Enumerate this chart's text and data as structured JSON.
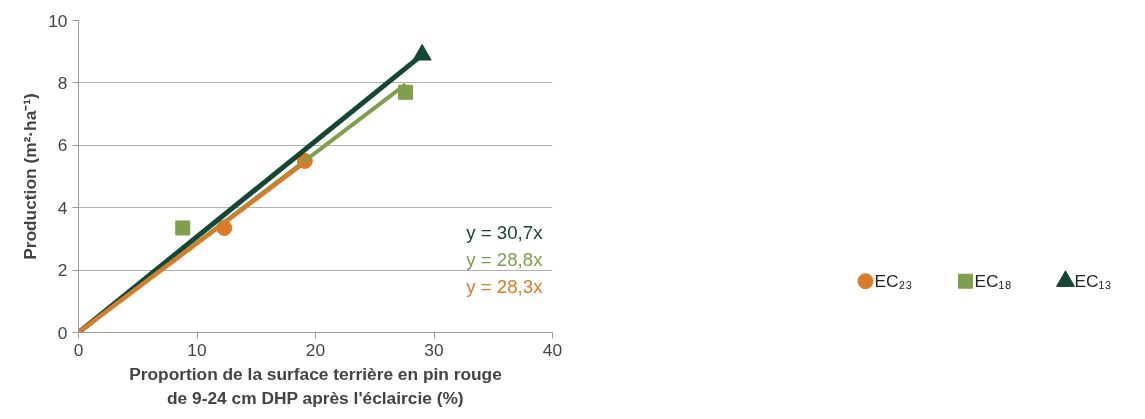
{
  "chart_data": {
    "type": "scatter",
    "xlabel": "Proportion de la surface terrière en pin rouge\nde 9-24 cm DHP après l'éclaircie (%)",
    "ylabel": "Production (m²·ha⁻¹)",
    "xlim": [
      0,
      40
    ],
    "xticks": [
      0,
      10,
      20,
      30,
      40
    ],
    "ylim": [
      0,
      10
    ],
    "yticks": [
      0,
      2,
      4,
      6,
      8,
      10
    ],
    "grid": "y",
    "legend": "bottom right",
    "series": [
      {
        "name": "EC₂₃",
        "type": "scatter",
        "marker": "circle",
        "color": "#d97b29",
        "x": [
          12.3,
          19.1
        ],
        "values": [
          3.35,
          5.5
        ]
      },
      {
        "name": "EC₁₈",
        "type": "scatter",
        "marker": "square",
        "color": "#7f9f4d",
        "x": [
          8.8,
          27.6
        ],
        "values": [
          3.35,
          7.7
        ]
      },
      {
        "name": "EC₁₃",
        "type": "scatter",
        "marker": "triangle",
        "color": "#154734",
        "x": [
          29.0
        ],
        "values": [
          8.9
        ]
      },
      {
        "type": "line",
        "line_style": "solid",
        "color": "#154734",
        "x": [
          0,
          29.0
        ],
        "values": [
          0,
          8.9
        ]
      },
      {
        "type": "line",
        "color": "#7f9f4d",
        "x": [
          0,
          27.6
        ],
        "values": [
          0,
          7.95
        ]
      },
      {
        "type": "line",
        "color": "#d97b29",
        "x": [
          0,
          19.1
        ],
        "values": [
          0,
          5.45
        ]
      }
    ],
    "annotations": [
      "y = 30,7x",
      "y = 28,8x",
      "y = 28,3x"
    ]
  }
}
